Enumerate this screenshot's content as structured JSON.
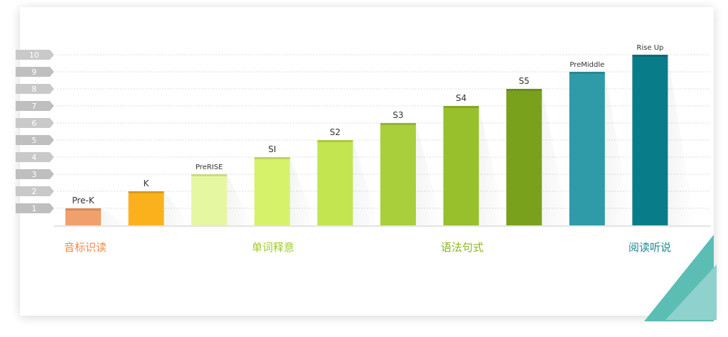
{
  "chart_data": {
    "type": "bar",
    "categories": [
      "Pre-K",
      "K",
      "PreRISE",
      "SI",
      "S2",
      "S3",
      "S4",
      "S5",
      "PreMiddle",
      "Rise Up"
    ],
    "values": [
      1,
      2,
      3,
      4,
      5,
      6,
      7,
      8,
      9,
      10
    ],
    "ylim": [
      0,
      10
    ],
    "y_ticks": [
      "1",
      "2",
      "3",
      "4",
      "5",
      "6",
      "7",
      "8",
      "9",
      "10"
    ],
    "grid": true,
    "bar_colors": [
      "#f0a06a",
      "#fbb11c",
      "#e6f7a2",
      "#d6f26a",
      "#c3e550",
      "#a9cf3a",
      "#97c02c",
      "#7aa11b",
      "#2f9aa8",
      "#087d89"
    ],
    "phases": [
      {
        "label": "音标识读",
        "color": "#f2884a"
      },
      {
        "label": "单词释意",
        "color": "#9ccc2b"
      },
      {
        "label": "语法句式",
        "color": "#8ab521"
      },
      {
        "label": "阅读听说",
        "color": "#1e8a94"
      }
    ],
    "accent_color": "#5bbdb4"
  }
}
